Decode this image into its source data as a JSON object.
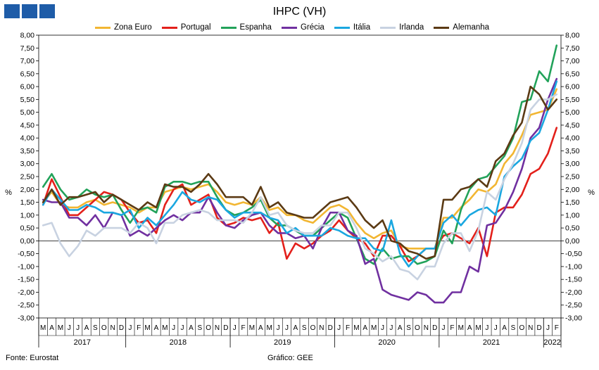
{
  "header": {
    "logo_colors": [
      "#1e5ca8",
      "#1e5ca8",
      "#1e5ca8"
    ]
  },
  "footer": {
    "source": "Fonte: Eurostat",
    "credit": "Gráfico: GEE"
  },
  "chart_data": {
    "type": "line",
    "title": "IHPC (VH)",
    "ylabel": "%",
    "ylim": [
      -3,
      8
    ],
    "y_ticks": [
      "8,00",
      "7,50",
      "7,00",
      "6,50",
      "6,00",
      "5,50",
      "5,00",
      "4,50",
      "4,00",
      "3,50",
      "3,00",
      "2,50",
      "2,00",
      "1,50",
      "1,00",
      "0,50",
      "0,00",
      "-0,50",
      "-1,00",
      "-1,50",
      "-2,00",
      "-2,50",
      "-3,00"
    ],
    "month_labels": [
      "M",
      "A",
      "M",
      "J",
      "J",
      "A",
      "S",
      "O",
      "N",
      "D",
      "J",
      "F",
      "M",
      "A",
      "M",
      "J",
      "J",
      "A",
      "S",
      "O",
      "N",
      "D",
      "J",
      "F",
      "M",
      "A",
      "M",
      "J",
      "J",
      "A",
      "S",
      "O",
      "N",
      "D",
      "J",
      "F",
      "M",
      "A",
      "M",
      "J",
      "J",
      "A",
      "S",
      "O",
      "N",
      "D",
      "J",
      "F",
      "M",
      "A",
      "M",
      "J",
      "J",
      "A",
      "S",
      "O",
      "N",
      "D",
      "J",
      "F"
    ],
    "years": [
      {
        "label": "2017",
        "start": 0,
        "end": 9
      },
      {
        "label": "2018",
        "start": 10,
        "end": 21
      },
      {
        "label": "2019",
        "start": 22,
        "end": 33
      },
      {
        "label": "2020",
        "start": 34,
        "end": 45
      },
      {
        "label": "2021",
        "start": 46,
        "end": 57
      },
      {
        "label": "2022",
        "start": 58,
        "end": 59
      }
    ],
    "grid": false,
    "legend_position": "top",
    "series": [
      {
        "name": "Zona Euro",
        "color": "#f2b632",
        "values": [
          1.5,
          1.9,
          1.4,
          1.3,
          1.3,
          1.5,
          1.6,
          1.4,
          1.5,
          1.4,
          1.3,
          1.1,
          1.3,
          1.3,
          1.9,
          2.0,
          2.1,
          2.0,
          2.1,
          2.2,
          1.9,
          1.5,
          1.4,
          1.5,
          1.4,
          1.7,
          1.2,
          1.3,
          1.0,
          1.0,
          0.8,
          0.7,
          1.0,
          1.3,
          1.4,
          1.2,
          0.7,
          0.3,
          0.1,
          0.3,
          0.4,
          -0.2,
          -0.3,
          -0.3,
          -0.3,
          -0.3,
          0.9,
          0.9,
          1.3,
          1.6,
          2.0,
          1.9,
          2.2,
          3.0,
          3.4,
          4.1,
          4.9,
          5.0,
          5.1,
          5.9
        ]
      },
      {
        "name": "Portugal",
        "color": "#e3201b",
        "values": [
          1.4,
          2.4,
          1.7,
          1.0,
          1.0,
          1.3,
          1.6,
          1.9,
          1.8,
          1.6,
          1.1,
          0.7,
          0.8,
          0.3,
          1.4,
          2.0,
          2.2,
          1.4,
          1.6,
          1.8,
          0.9,
          0.6,
          0.7,
          0.9,
          0.8,
          0.9,
          0.3,
          0.7,
          -0.7,
          -0.1,
          -0.3,
          -0.1,
          0.2,
          0.4,
          0.8,
          0.4,
          0.1,
          -0.1,
          -0.6,
          0.2,
          0.2,
          -0.2,
          -0.8,
          -0.6,
          -0.3,
          -0.3,
          0.2,
          0.3,
          0.1,
          -0.1,
          0.5,
          -0.6,
          1.1,
          1.3,
          1.3,
          1.8,
          2.6,
          2.8,
          3.4,
          4.4
        ]
      },
      {
        "name": "Espanha",
        "color": "#22a25a",
        "values": [
          2.1,
          2.6,
          2.0,
          1.6,
          1.7,
          2.0,
          1.8,
          1.7,
          1.8,
          1.2,
          0.7,
          1.2,
          1.3,
          1.1,
          2.1,
          2.3,
          2.3,
          2.2,
          2.3,
          2.3,
          1.7,
          1.2,
          1.0,
          1.1,
          1.3,
          1.6,
          0.9,
          0.6,
          0.6,
          0.4,
          0.2,
          0.2,
          0.5,
          0.8,
          1.1,
          0.9,
          0.1,
          -0.7,
          -0.9,
          -0.3,
          -0.7,
          -0.6,
          -0.6,
          -0.9,
          -0.8,
          -0.6,
          0.4,
          -0.1,
          1.2,
          2.0,
          2.4,
          2.5,
          2.9,
          3.3,
          4.0,
          5.4,
          5.5,
          6.6,
          6.2,
          7.6
        ]
      },
      {
        "name": "Grécia",
        "color": "#7030a0",
        "values": [
          1.6,
          1.5,
          1.5,
          0.9,
          0.9,
          0.6,
          1.0,
          0.5,
          1.1,
          1.0,
          0.2,
          0.4,
          0.2,
          0.5,
          0.8,
          1.0,
          0.8,
          1.1,
          1.1,
          1.7,
          1.1,
          0.6,
          0.5,
          0.8,
          1.0,
          1.1,
          0.6,
          0.3,
          0.3,
          0.1,
          0.2,
          -0.3,
          0.5,
          1.1,
          1.1,
          0.4,
          0.2,
          -0.9,
          -0.7,
          -1.9,
          -2.1,
          -2.2,
          -2.3,
          -2.0,
          -2.1,
          -2.4,
          -2.4,
          -2.0,
          -2.0,
          -1.0,
          -1.2,
          0.6,
          0.7,
          1.2,
          1.9,
          2.8,
          4.0,
          4.4,
          5.5,
          6.3
        ]
      },
      {
        "name": "Itália",
        "color": "#1aa7e0",
        "values": [
          1.4,
          2.0,
          1.6,
          1.2,
          1.2,
          1.4,
          1.3,
          1.1,
          1.1,
          1.0,
          1.2,
          0.5,
          0.9,
          0.6,
          1.0,
          1.4,
          1.9,
          1.6,
          1.5,
          1.7,
          1.6,
          1.2,
          0.9,
          1.1,
          1.1,
          1.1,
          0.9,
          0.8,
          0.3,
          0.5,
          0.2,
          0.2,
          0.2,
          0.5,
          0.4,
          0.2,
          0.1,
          0.1,
          -0.3,
          -0.4,
          0.8,
          -0.5,
          -1.0,
          -0.6,
          -0.3,
          -0.3,
          0.7,
          1.0,
          0.6,
          1.0,
          1.2,
          1.3,
          1.0,
          2.5,
          2.9,
          3.2,
          3.9,
          4.2,
          5.1,
          6.2
        ]
      },
      {
        "name": "Irlanda",
        "color": "#c8d2e1",
        "values": [
          0.6,
          0.7,
          -0.1,
          -0.6,
          -0.2,
          0.4,
          0.2,
          0.5,
          0.5,
          0.5,
          0.3,
          0.7,
          0.5,
          -0.1,
          0.7,
          0.7,
          1.0,
          1.1,
          1.2,
          1.1,
          0.8,
          0.8,
          0.8,
          0.7,
          1.1,
          1.7,
          1.0,
          1.1,
          0.6,
          0.4,
          0.3,
          0.3,
          0.6,
          0.6,
          1.1,
          1.1,
          0.5,
          -0.3,
          -0.5,
          -0.8,
          -0.6,
          -1.1,
          -1.2,
          -1.5,
          -1.0,
          -1.0,
          -0.1,
          0.3,
          0.3,
          -0.4,
          0.4,
          1.9,
          1.6,
          2.4,
          3.0,
          3.8,
          5.1,
          5.5,
          5.5,
          5.7
        ]
      },
      {
        "name": "Alemanha",
        "color": "#5b3a14",
        "values": [
          1.5,
          2.0,
          1.4,
          1.7,
          1.7,
          1.8,
          1.9,
          1.5,
          1.8,
          1.6,
          1.4,
          1.2,
          1.5,
          1.3,
          2.2,
          2.1,
          2.1,
          1.9,
          2.2,
          2.6,
          2.2,
          1.7,
          1.7,
          1.7,
          1.4,
          2.1,
          1.3,
          1.5,
          1.1,
          1.0,
          0.9,
          0.9,
          1.2,
          1.5,
          1.6,
          1.7,
          1.3,
          0.8,
          0.5,
          0.8,
          0.0,
          -0.1,
          -0.4,
          -0.5,
          -0.7,
          -0.6,
          1.6,
          1.6,
          2.0,
          2.1,
          2.4,
          2.1,
          3.1,
          3.4,
          4.1,
          4.6,
          6.0,
          5.7,
          5.1,
          5.5
        ]
      }
    ]
  }
}
